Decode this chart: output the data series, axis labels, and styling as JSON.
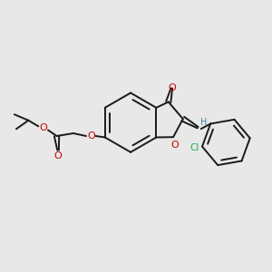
{
  "bg_color": "#e8e8e8",
  "bond_color": "#1a1a1a",
  "oxygen_color": "#cc0000",
  "chlorine_color": "#22aa44",
  "h_color": "#4488aa",
  "lw": 1.4,
  "fs": 7.0,
  "fig_w": 3.0,
  "fig_h": 3.0,
  "dpi": 100,
  "xlim": [
    0,
    10
  ],
  "ylim": [
    0,
    10
  ]
}
